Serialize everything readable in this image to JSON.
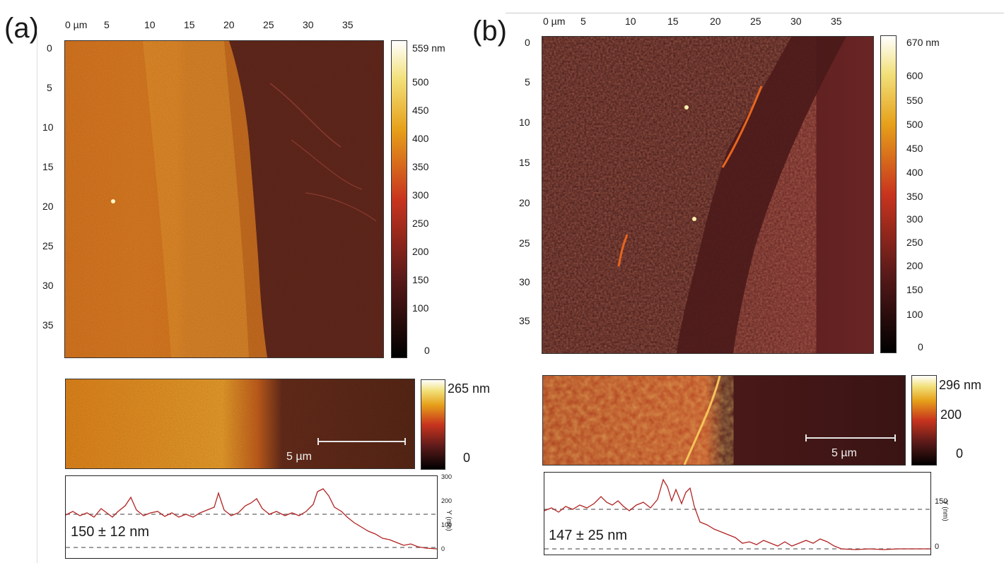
{
  "panel_a": {
    "letter": "(a)",
    "xticks": [
      "0 µm",
      "5",
      "10",
      "15",
      "20",
      "25",
      "30",
      "35"
    ],
    "yticks": [
      "0",
      "5",
      "10",
      "15",
      "20",
      "25",
      "30",
      "35"
    ],
    "colorbar_ticks": [
      "559 nm",
      "500",
      "450",
      "400",
      "350",
      "300",
      "250",
      "200",
      "150",
      "100",
      "0"
    ],
    "insert_colorbar": {
      "max": "265 nm",
      "min": "0"
    },
    "scalebar": "5 µm",
    "profile_right_ticks": [
      "300",
      "200",
      "100",
      "0"
    ],
    "profile_axis_label": "Y (nm)",
    "thickness": "150 ± 12 nm"
  },
  "panel_b": {
    "letter": "(b)",
    "xticks": [
      "0 µm",
      "5",
      "10",
      "15",
      "20",
      "25",
      "30",
      "35"
    ],
    "yticks": [
      "0",
      "5",
      "10",
      "15",
      "20",
      "25",
      "30",
      "35"
    ],
    "colorbar_ticks": [
      "670 nm",
      "600",
      "550",
      "500",
      "450",
      "400",
      "350",
      "300",
      "250",
      "200",
      "150",
      "100",
      "0"
    ],
    "insert_colorbar": {
      "max": "296 nm",
      "mid": "200",
      "min": "0"
    },
    "scalebar": "5 µm",
    "profile_right_ticks": [
      "150",
      "0"
    ],
    "profile_axis_label": "Y (nm)",
    "thickness": "147 ± 25 nm"
  },
  "colors": {
    "profile_line": "#b22222",
    "dashed": "#666666"
  }
}
